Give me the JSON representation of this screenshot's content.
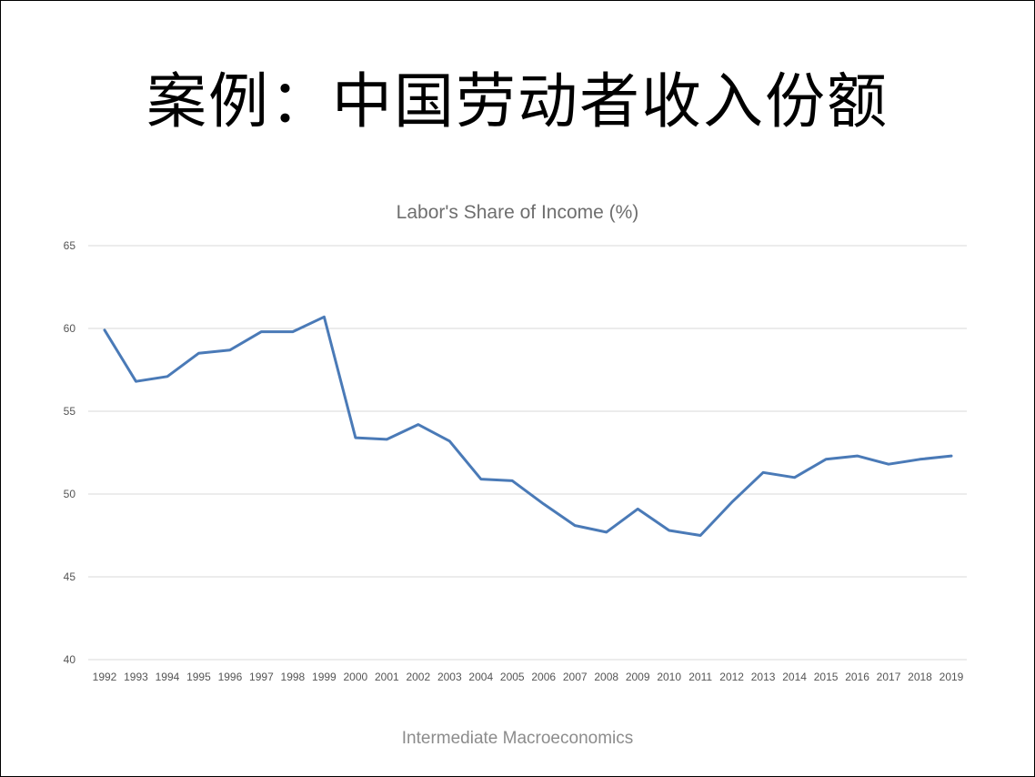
{
  "slide": {
    "title": "案例：中国劳动者收入份额",
    "footer": "Intermediate Macroeconomics"
  },
  "chart_data": {
    "type": "line",
    "title": "Labor's Share of Income (%)",
    "xlabel": "",
    "ylabel": "",
    "ylim": [
      40,
      65
    ],
    "yticks": [
      40,
      45,
      50,
      55,
      60,
      65
    ],
    "grid": true,
    "legend": "none",
    "series_color": "#4a7ab7",
    "categories": [
      "1992",
      "1993",
      "1994",
      "1995",
      "1996",
      "1997",
      "1998",
      "1999",
      "2000",
      "2001",
      "2002",
      "2003",
      "2004",
      "2005",
      "2006",
      "2007",
      "2008",
      "2009",
      "2010",
      "2011",
      "2012",
      "2013",
      "2014",
      "2015",
      "2016",
      "2017",
      "2018",
      "2019"
    ],
    "series": [
      {
        "name": "Labor's Share of Income (%)",
        "values": [
          59.9,
          56.8,
          57.1,
          58.5,
          58.7,
          59.8,
          59.8,
          60.7,
          53.4,
          53.3,
          54.2,
          53.2,
          50.9,
          50.8,
          49.4,
          48.1,
          47.7,
          49.1,
          47.8,
          47.5,
          49.5,
          51.3,
          51.0,
          52.1,
          52.3,
          51.8,
          52.1,
          52.3
        ]
      }
    ]
  }
}
